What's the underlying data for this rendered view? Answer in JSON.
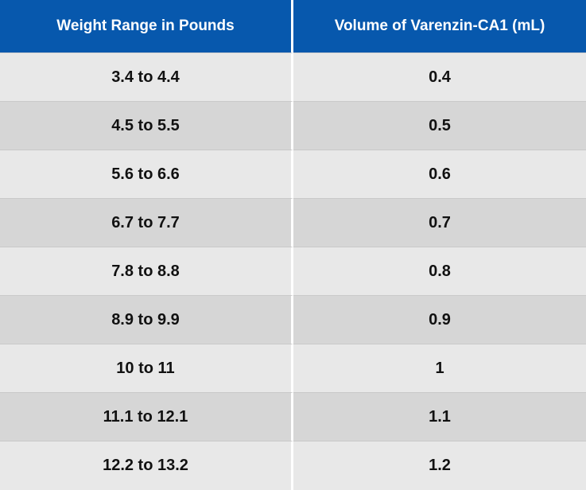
{
  "table": {
    "headers": {
      "weight": "Weight Range in Pounds",
      "volume": "Volume of Varenzin-CA1 (mL)"
    },
    "rows": [
      {
        "weight": "3.4 to 4.4",
        "volume": "0.4"
      },
      {
        "weight": "4.5 to 5.5",
        "volume": "0.5"
      },
      {
        "weight": "5.6 to 6.6",
        "volume": "0.6"
      },
      {
        "weight": "6.7 to 7.7",
        "volume": "0.7"
      },
      {
        "weight": "7.8 to 8.8",
        "volume": "0.8"
      },
      {
        "weight": "8.9 to 9.9",
        "volume": "0.9"
      },
      {
        "weight": "10 to 11",
        "volume": "1"
      },
      {
        "weight": "11.1 to 12.1",
        "volume": "1.1"
      },
      {
        "weight": "12.2 to 13.2",
        "volume": "1.2"
      }
    ]
  },
  "colors": {
    "header_bg": "#0758ad",
    "header_text": "#ffffff",
    "row_light": "#e8e8e8",
    "row_dark": "#d6d6d6"
  }
}
